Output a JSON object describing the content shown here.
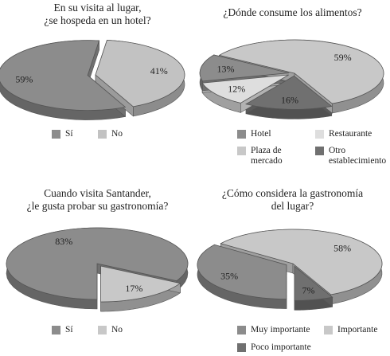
{
  "chart_data": [
    {
      "type": "pie",
      "title": [
        "En su visita al lugar,",
        "¿se hospeda en un hotel?"
      ],
      "slices": [
        {
          "label": "Sí",
          "value": 59,
          "text": "59%",
          "color": "#8c8c8c"
        },
        {
          "label": "No",
          "value": 41,
          "text": "41%",
          "color": "#c2c2c2"
        }
      ],
      "legend": [
        "Sí",
        "No"
      ],
      "legend_position": "bottom"
    },
    {
      "type": "pie",
      "title": [
        "¿Dónde consume los alimentos?"
      ],
      "slices": [
        {
          "label": "Otro establecimiento",
          "value": 16,
          "text": "16%",
          "color": "#707070"
        },
        {
          "label": "Restaurante",
          "value": 12,
          "text": "12%",
          "color": "#dedede"
        },
        {
          "label": "Hotel",
          "value": 13,
          "text": "13%",
          "color": "#8c8c8c"
        },
        {
          "label": "Plaza de mercado",
          "value": 59,
          "text": "59%",
          "color": "#c8c8c8"
        }
      ],
      "legend": [
        "Hotel",
        "Restaurante",
        "Plaza de\nmercado",
        "Otro\nestablecimiento"
      ],
      "legend_position": "bottom"
    },
    {
      "type": "pie",
      "title": [
        "Cuando visita Santander,",
        "¿le gusta probar su gastronomía?"
      ],
      "slices": [
        {
          "label": "Sí",
          "value": 83,
          "text": "83%",
          "color": "#8c8c8c"
        },
        {
          "label": "No",
          "value": 17,
          "text": "17%",
          "color": "#c8c8c8"
        }
      ],
      "legend": [
        "Sí",
        "No"
      ],
      "legend_position": "bottom"
    },
    {
      "type": "pie",
      "title": [
        "¿Cómo considera la gastronomía",
        "del lugar?"
      ],
      "slices": [
        {
          "label": "Muy importante",
          "value": 35,
          "text": "35%",
          "color": "#8c8c8c"
        },
        {
          "label": "Importante",
          "value": 58,
          "text": "58%",
          "color": "#c8c8c8"
        },
        {
          "label": "Poco importante",
          "value": 7,
          "text": "7%",
          "color": "#707070"
        }
      ],
      "legend": [
        "Muy importante",
        "Importante",
        "Poco importante"
      ],
      "legend_position": "bottom"
    }
  ]
}
